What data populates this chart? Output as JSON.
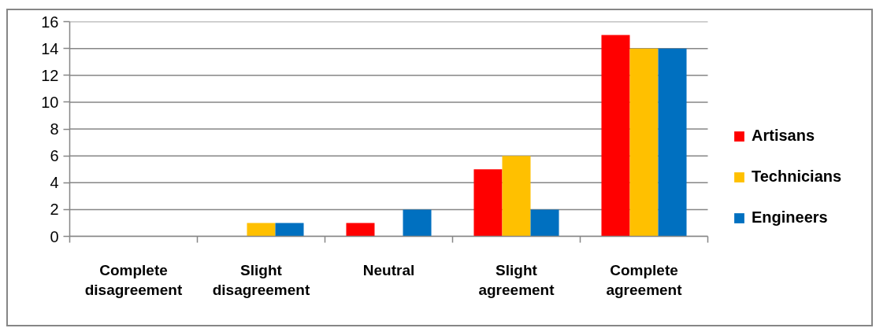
{
  "chart_data": {
    "type": "bar",
    "categories": [
      "Complete disagreement",
      "Slight disagreement",
      "Neutral",
      "Slight agreement",
      "Complete agreement"
    ],
    "series": [
      {
        "name": "Artisans",
        "color": "#ff0000",
        "values": [
          0,
          0,
          1,
          5,
          15
        ]
      },
      {
        "name": "Technicians",
        "color": "#ffc000",
        "values": [
          0,
          1,
          0,
          6,
          14
        ]
      },
      {
        "name": "Engineers",
        "color": "#0070c0",
        "values": [
          0,
          1,
          2,
          2,
          14
        ]
      }
    ],
    "ylim": [
      0,
      16
    ],
    "yticks": [
      0,
      2,
      4,
      6,
      8,
      10,
      12,
      14,
      16
    ],
    "grid": "y",
    "legend": "right"
  }
}
